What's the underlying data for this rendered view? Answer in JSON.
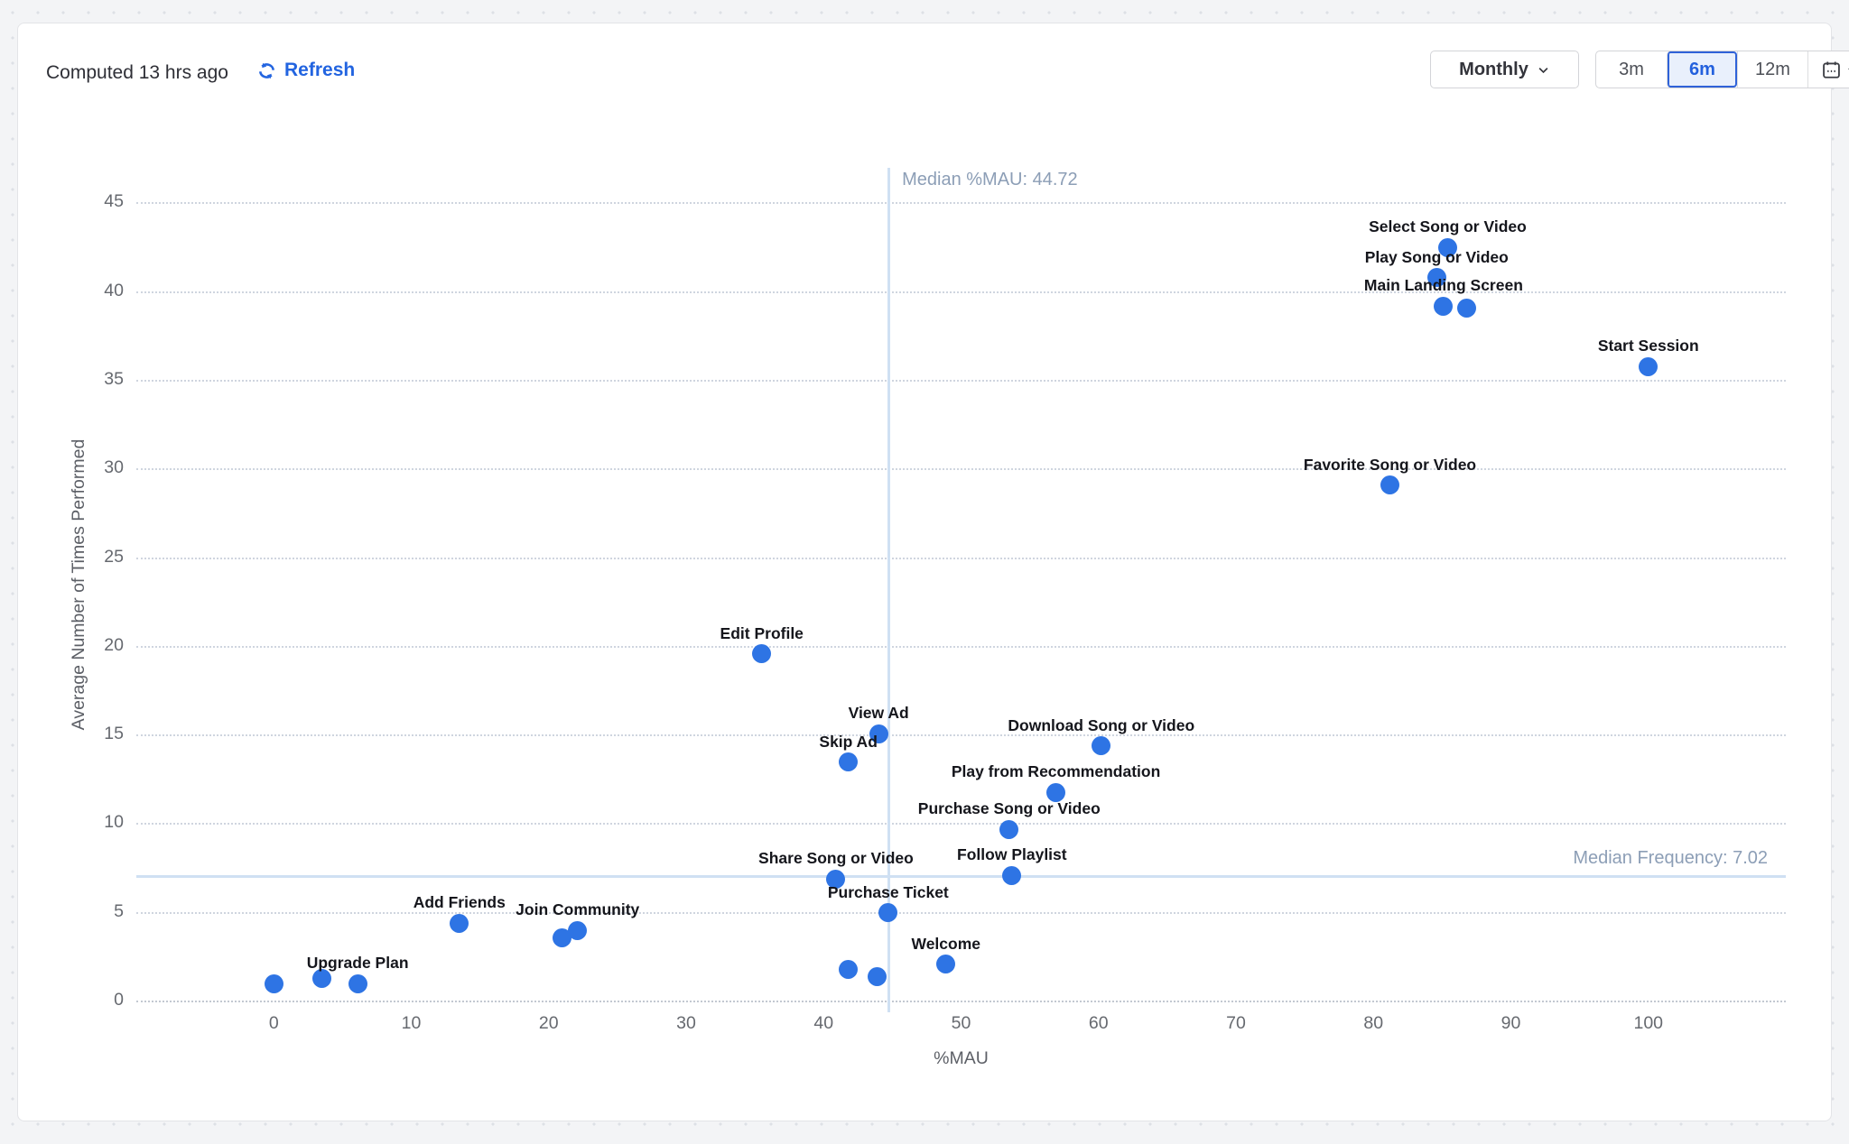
{
  "header": {
    "computed_label": "Computed 13 hrs ago",
    "refresh_label": "Refresh",
    "interval_dropdown": {
      "value": "Monthly"
    },
    "range_buttons": [
      {
        "label": "3m",
        "selected": false
      },
      {
        "label": "6m",
        "selected": true
      },
      {
        "label": "12m",
        "selected": false
      }
    ]
  },
  "colors": {
    "point": "#2e74e4",
    "accent_blue": "#2264e0",
    "median_line": "#cfe0f3",
    "median_text": "#8c9eb6"
  },
  "chart_data": {
    "type": "scatter",
    "xlabel": "%MAU",
    "ylabel": "Average Number of Times Performed",
    "xlim": [
      -10,
      110
    ],
    "ylim": [
      0,
      47
    ],
    "x_ticks": [
      0,
      10,
      20,
      30,
      40,
      50,
      60,
      70,
      80,
      90,
      100
    ],
    "y_ticks": [
      0,
      5,
      10,
      15,
      20,
      25,
      30,
      35,
      40,
      45
    ],
    "grid": "horizontal-dotted",
    "legend": "none",
    "median_x": {
      "value": 44.72,
      "label": "Median %MAU: 44.72"
    },
    "median_y": {
      "value": 7.02,
      "label": "Median Frequency: 7.02"
    },
    "points": [
      {
        "label": "Select Song or Video",
        "x": 85.4,
        "y": 42.5
      },
      {
        "label": "Play Song or Video",
        "x": 84.6,
        "y": 40.8
      },
      {
        "label": "Main Landing Screen",
        "x": 85.1,
        "y": 39.2
      },
      {
        "label": "",
        "x": 86.8,
        "y": 39.1
      },
      {
        "label": "Start Session",
        "x": 100,
        "y": 35.8
      },
      {
        "label": "Favorite Song or Video",
        "x": 81.2,
        "y": 29.1
      },
      {
        "label": "Edit Profile",
        "x": 35.5,
        "y": 19.6
      },
      {
        "label": "View Ad",
        "x": 44.0,
        "y": 15.1
      },
      {
        "label": "Skip Ad",
        "x": 41.8,
        "y": 13.5
      },
      {
        "label": "Download Song or Video",
        "x": 60.2,
        "y": 14.4
      },
      {
        "label": "Play from Recommendation",
        "x": 56.9,
        "y": 11.8
      },
      {
        "label": "Purchase Song or Video",
        "x": 53.5,
        "y": 9.7
      },
      {
        "label": "Share Song or Video",
        "x": 40.9,
        "y": 6.9
      },
      {
        "label": "Follow Playlist",
        "x": 53.7,
        "y": 7.1
      },
      {
        "label": "Purchase Ticket",
        "x": 44.7,
        "y": 5.0
      },
      {
        "label": "Welcome",
        "x": 48.9,
        "y": 2.1
      },
      {
        "label": "Add Friends",
        "x": 13.5,
        "y": 4.4
      },
      {
        "label": "Join Community",
        "x": 22.1,
        "y": 4.0
      },
      {
        "label": "",
        "x": 21.0,
        "y": 3.6
      },
      {
        "label": "Upgrade Plan",
        "x": 6.1,
        "y": 1.0
      },
      {
        "label": "",
        "x": 3.5,
        "y": 1.3
      },
      {
        "label": "",
        "x": 0,
        "y": 1.0
      },
      {
        "label": "",
        "x": 41.8,
        "y": 1.8
      },
      {
        "label": "",
        "x": 43.9,
        "y": 1.4
      }
    ]
  }
}
